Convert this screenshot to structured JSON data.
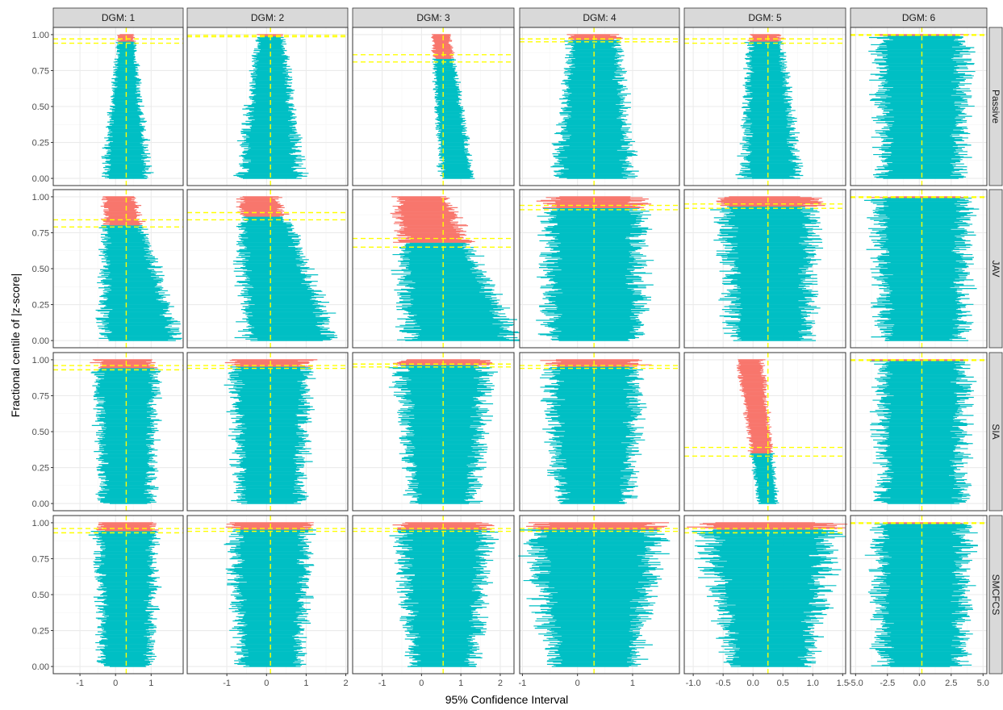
{
  "chart_data": {
    "type": "interval",
    "xlabel": "95% Confidence Interval",
    "ylabel": "Fractional centile of |z-score|",
    "columns": [
      "DGM: 1",
      "DGM: 2",
      "DGM: 3",
      "DGM: 4",
      "DGM: 5",
      "DGM: 6"
    ],
    "rows": [
      "Passive",
      "JAV",
      "SIA",
      "SMCFCS"
    ],
    "y_ticks": [
      0.0,
      0.25,
      0.5,
      0.75,
      1.0
    ],
    "y_tick_labels": [
      "0.00",
      "0.25",
      "0.50",
      "0.75",
      "1.00"
    ],
    "ylim": [
      -0.05,
      1.05
    ],
    "panels_x": [
      {
        "xlim": [
          -1.75,
          1.9
        ],
        "ticks": [
          -1,
          0,
          1
        ],
        "tick_labels": [
          "-1",
          "0",
          "1"
        ],
        "true_value": 0.3
      },
      {
        "xlim": [
          -2.0,
          2.05
        ],
        "ticks": [
          -1,
          0,
          1,
          2
        ],
        "tick_labels": [
          "-1",
          "0",
          "1",
          "2"
        ],
        "true_value": 0.1
      },
      {
        "xlim": [
          -1.75,
          2.35
        ],
        "ticks": [
          -1,
          0,
          1,
          2
        ],
        "tick_labels": [
          "-1",
          "0",
          "1",
          "2"
        ],
        "true_value": 0.55
      },
      {
        "xlim": [
          -1.05,
          1.85
        ],
        "ticks": [
          -1,
          0,
          1
        ],
        "tick_labels": [
          "-1",
          "0",
          "1"
        ],
        "true_value": 0.3
      },
      {
        "xlim": [
          -1.15,
          1.55
        ],
        "ticks": [
          -1.0,
          -0.5,
          0.0,
          0.5,
          1.0,
          1.5
        ],
        "tick_labels": [
          "-1.0",
          "-0.5",
          "0.0",
          "0.5",
          "1.0",
          "1.5"
        ],
        "true_value": 0.25
      },
      {
        "xlim": [
          -5.4,
          5.3
        ],
        "ticks": [
          -5,
          -2.5,
          0,
          2.5,
          5
        ],
        "tick_labels": [
          "-5.0",
          "-2.5",
          "0.0",
          "2.5",
          "5.0"
        ],
        "true_value": 0.2
      }
    ],
    "panels": [
      [
        {
          "center_top": 0.3,
          "center_bottom": 0.3,
          "width_top": 0.4,
          "width_bottom": 1.2,
          "cover_cut": 0.95,
          "band": [
            0.94,
            0.97
          ]
        },
        {
          "center_top": 0.1,
          "center_bottom": 0.1,
          "width_top": 0.6,
          "width_bottom": 1.5,
          "cover_cut": 0.985,
          "band": [
            0.985,
            0.995
          ]
        },
        {
          "center_top": 0.5,
          "center_bottom": 0.9,
          "width_top": 0.4,
          "width_bottom": 0.8,
          "cover_cut": 0.83,
          "band": [
            0.81,
            0.86
          ]
        },
        {
          "center_top": 0.3,
          "center_bottom": 0.3,
          "width_top": 0.8,
          "width_bottom": 1.3,
          "cover_cut": 0.96,
          "band": [
            0.95,
            0.97
          ]
        },
        {
          "center_top": 0.2,
          "center_bottom": 0.3,
          "width_top": 0.5,
          "width_bottom": 0.9,
          "cover_cut": 0.95,
          "band": [
            0.94,
            0.97
          ]
        },
        {
          "center_top": 0.2,
          "center_bottom": 0.2,
          "width_top": 6.5,
          "width_bottom": 6.0,
          "cover_cut": 0.99,
          "band": [
            0.995,
            1.0
          ]
        }
      ],
      [
        {
          "center_top": 0.1,
          "center_bottom": 0.7,
          "width_top": 0.8,
          "width_bottom": 2.0,
          "cover_cut": 0.8,
          "band": [
            0.79,
            0.84
          ]
        },
        {
          "center_top": -0.2,
          "center_bottom": 0.6,
          "width_top": 0.9,
          "width_bottom": 2.2,
          "cover_cut": 0.86,
          "band": [
            0.84,
            0.89
          ]
        },
        {
          "center_top": 0.0,
          "center_bottom": 1.0,
          "width_top": 1.2,
          "width_bottom": 2.6,
          "cover_cut": 0.68,
          "band": [
            0.65,
            0.71
          ]
        },
        {
          "center_top": 0.3,
          "center_bottom": 0.3,
          "width_top": 1.6,
          "width_bottom": 1.6,
          "cover_cut": 0.92,
          "band": [
            0.91,
            0.94
          ]
        },
        {
          "center_top": 0.25,
          "center_bottom": 0.3,
          "width_top": 1.5,
          "width_bottom": 1.2,
          "cover_cut": 0.93,
          "band": [
            0.92,
            0.95
          ]
        },
        {
          "center_top": 0.2,
          "center_bottom": 0.2,
          "width_top": 6.8,
          "width_bottom": 6.0,
          "cover_cut": 0.99,
          "band": [
            0.995,
            1.0
          ]
        }
      ],
      [
        {
          "center_top": 0.3,
          "center_bottom": 0.3,
          "width_top": 1.6,
          "width_bottom": 1.3,
          "cover_cut": 0.94,
          "band": [
            0.93,
            0.96
          ]
        },
        {
          "center_top": 0.1,
          "center_bottom": 0.1,
          "width_top": 1.8,
          "width_bottom": 1.5,
          "cover_cut": 0.95,
          "band": [
            0.94,
            0.96
          ]
        },
        {
          "center_top": 0.55,
          "center_bottom": 0.55,
          "width_top": 2.2,
          "width_bottom": 1.5,
          "cover_cut": 0.96,
          "band": [
            0.95,
            0.97
          ]
        },
        {
          "center_top": 0.3,
          "center_bottom": 0.3,
          "width_top": 1.6,
          "width_bottom": 1.2,
          "cover_cut": 0.95,
          "band": [
            0.94,
            0.96
          ]
        },
        {
          "center_top": -0.05,
          "center_bottom": 0.25,
          "width_top": 0.4,
          "width_bottom": 0.3,
          "cover_cut": 0.35,
          "band": [
            0.33,
            0.39
          ]
        },
        {
          "center_top": 0.2,
          "center_bottom": 0.2,
          "width_top": 6.5,
          "width_bottom": 6.0,
          "cover_cut": 0.99,
          "band": [
            0.995,
            1.0
          ]
        }
      ],
      [
        {
          "center_top": 0.3,
          "center_bottom": 0.3,
          "width_top": 1.6,
          "width_bottom": 1.3,
          "cover_cut": 0.94,
          "band": [
            0.93,
            0.96
          ]
        },
        {
          "center_top": 0.1,
          "center_bottom": 0.1,
          "width_top": 1.8,
          "width_bottom": 1.5,
          "cover_cut": 0.95,
          "band": [
            0.94,
            0.96
          ]
        },
        {
          "center_top": 0.55,
          "center_bottom": 0.55,
          "width_top": 2.2,
          "width_bottom": 1.5,
          "cover_cut": 0.95,
          "band": [
            0.94,
            0.96
          ]
        },
        {
          "center_top": 0.3,
          "center_bottom": 0.3,
          "width_top": 2.2,
          "width_bottom": 1.5,
          "cover_cut": 0.95,
          "band": [
            0.94,
            0.96
          ]
        },
        {
          "center_top": 0.25,
          "center_bottom": 0.3,
          "width_top": 2.1,
          "width_bottom": 1.2,
          "cover_cut": 0.95,
          "band": [
            0.93,
            0.96
          ]
        },
        {
          "center_top": 0.2,
          "center_bottom": 0.2,
          "width_top": 6.8,
          "width_bottom": 6.0,
          "cover_cut": 0.99,
          "band": [
            0.995,
            1.0
          ]
        }
      ]
    ],
    "colors": {
      "covered": "#00BFC4",
      "not_covered": "#F8766D",
      "reference": "#FFFF00",
      "strip_fill": "#D9D9D9",
      "grid_major": "#EBEBEB",
      "grid_minor": "#F5F5F5",
      "panel_border": "#333333"
    }
  }
}
